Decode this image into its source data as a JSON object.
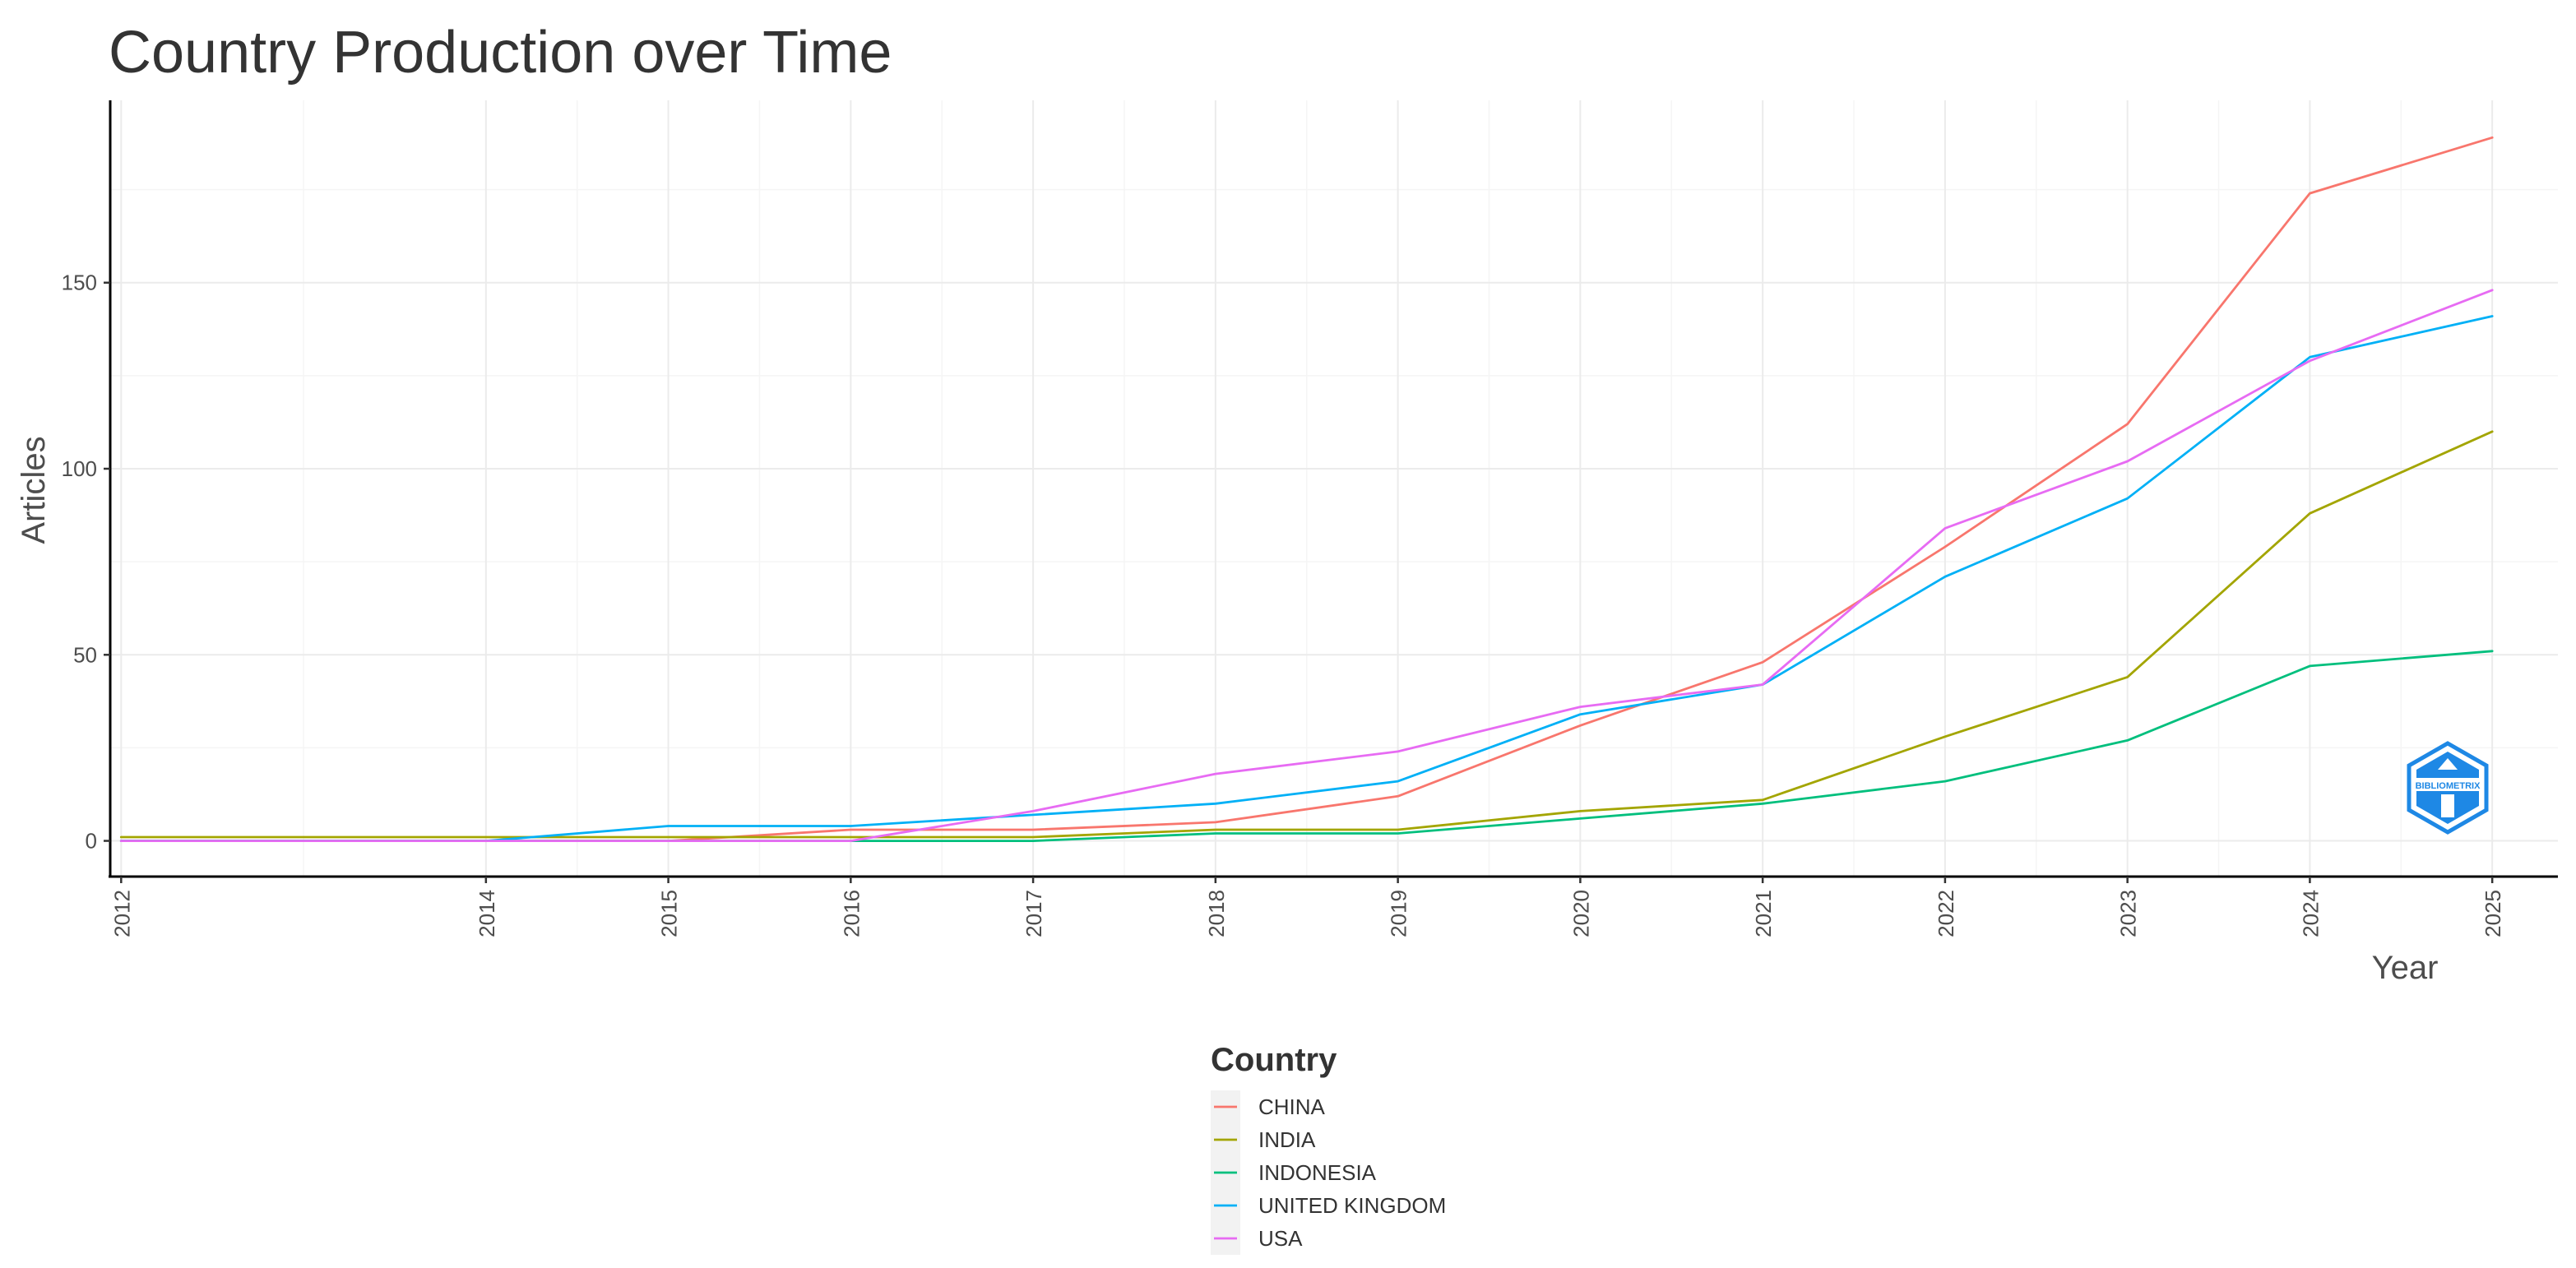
{
  "chart_data": {
    "type": "line",
    "title": "Country Production over Time",
    "xlabel": "Year",
    "ylabel": "Articles",
    "x": [
      2012,
      2014,
      2015,
      2016,
      2017,
      2018,
      2019,
      2020,
      2021,
      2022,
      2023,
      2024,
      2025
    ],
    "xlim": [
      2011.94,
      2025.36
    ],
    "ylim": [
      -9.6,
      199
    ],
    "yticks": [
      0,
      50,
      100,
      150
    ],
    "grid": true,
    "legend": {
      "title": "Country",
      "placement": "bottom"
    },
    "series": [
      {
        "name": "CHINA",
        "color": "#F8766D",
        "values": [
          0,
          0,
          0,
          3,
          3,
          5,
          12,
          31,
          48,
          79,
          112,
          174,
          189
        ]
      },
      {
        "name": "INDIA",
        "color": "#A3A500",
        "values": [
          1,
          1,
          1,
          1,
          1,
          3,
          3,
          8,
          11,
          28,
          44,
          88,
          110
        ]
      },
      {
        "name": "INDONESIA",
        "color": "#00BF7D",
        "values": [
          0,
          0,
          0,
          0,
          0,
          2,
          2,
          6,
          10,
          16,
          27,
          47,
          51
        ]
      },
      {
        "name": "UNITED KINGDOM",
        "color": "#00B0F6",
        "values": [
          0,
          0,
          4,
          4,
          7,
          10,
          16,
          34,
          42,
          71,
          92,
          130,
          141
        ]
      },
      {
        "name": "USA",
        "color": "#E76BF3",
        "values": [
          0,
          0,
          0,
          0,
          8,
          18,
          24,
          36,
          42,
          84,
          102,
          129,
          148
        ]
      }
    ],
    "logo": {
      "icon": "bibliometrix-hexagon-icon",
      "text": "BIBLIOMETRIX",
      "color": "#1E88E5"
    }
  }
}
